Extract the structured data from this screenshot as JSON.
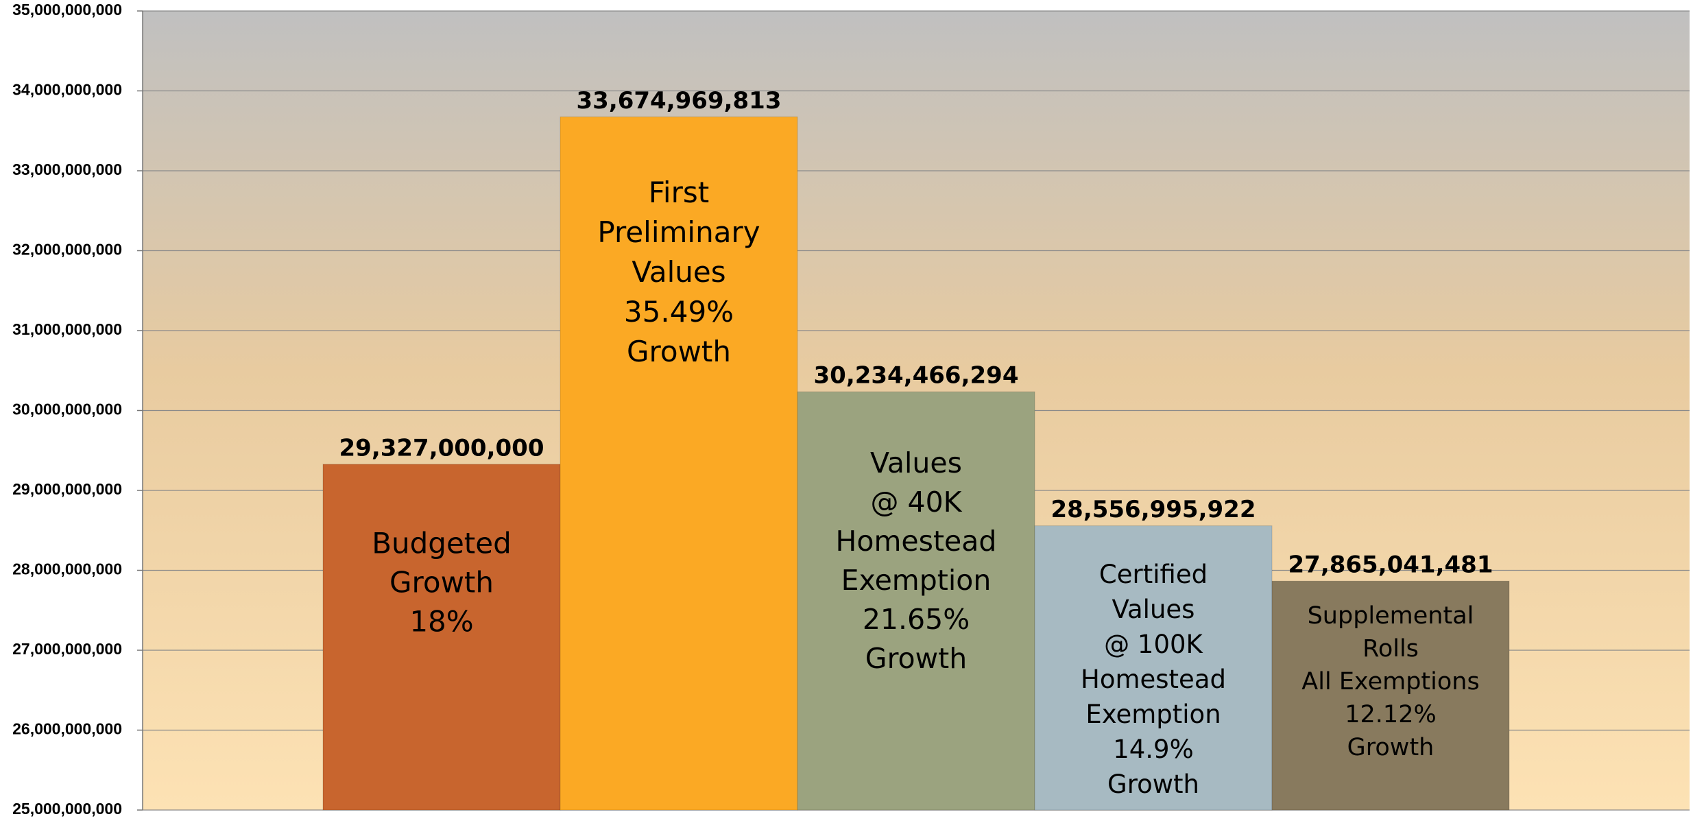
{
  "chart_data": {
    "type": "bar",
    "categories": [
      [
        "Budgeted",
        "Growth",
        "18%"
      ],
      [
        "First",
        "Preliminary",
        "Values",
        "35.49%",
        "Growth"
      ],
      [
        "Values",
        "@ 40K",
        "Homestead",
        "Exemption",
        "21.65%",
        "Growth"
      ],
      [
        "Certified",
        "Values",
        "@ 100K",
        "Homestead",
        "Exemption",
        "14.9%",
        "Growth"
      ],
      [
        "Supplemental",
        "Rolls",
        "All Exemptions",
        "12.12%",
        "Growth"
      ]
    ],
    "values": [
      29327000000,
      33674969813,
      30234466294,
      28556995922,
      27865041481
    ],
    "value_labels": [
      "29,327,000,000",
      "33,674,969,813",
      "30,234,466,294",
      "28,556,995,922",
      "27,865,041,481"
    ],
    "colors": [
      "#c8652e",
      "#fba924",
      "#9ba37f",
      "#a7bac2",
      "#887a5e"
    ],
    "ylim": [
      25000000000,
      35000000000
    ],
    "yticks": [
      {
        "value": 25000000000,
        "label": "25,000,000,000"
      },
      {
        "value": 26000000000,
        "label": "26,000,000,000"
      },
      {
        "value": 27000000000,
        "label": "27,000,000,000"
      },
      {
        "value": 28000000000,
        "label": "28,000,000,000"
      },
      {
        "value": 29000000000,
        "label": "29,000,000,000"
      },
      {
        "value": 30000000000,
        "label": "30,000,000,000"
      },
      {
        "value": 31000000000,
        "label": "31,000,000,000"
      },
      {
        "value": 32000000000,
        "label": "32,000,000,000"
      },
      {
        "value": 33000000000,
        "label": "33,000,000,000"
      },
      {
        "value": 34000000000,
        "label": "34,000,000,000"
      },
      {
        "value": 35000000000,
        "label": "35,000,000,000"
      }
    ],
    "grid": true
  }
}
